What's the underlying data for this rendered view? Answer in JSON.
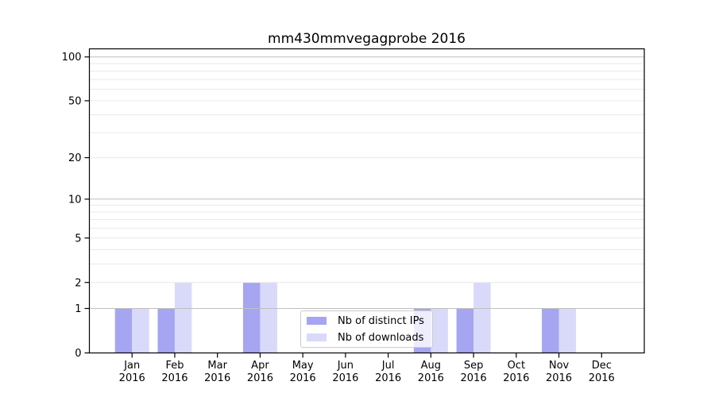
{
  "chart_data": {
    "type": "bar",
    "title": "mm430mmvegagprobe 2016",
    "categories": [
      "Jan",
      "Feb",
      "Mar",
      "Apr",
      "May",
      "Jun",
      "Jul",
      "Aug",
      "Sep",
      "Oct",
      "Nov",
      "Dec"
    ],
    "category_year": "2016",
    "series": [
      {
        "name": "Nb of distinct IPs",
        "color": "#a5a5f2",
        "values": [
          1,
          1,
          0,
          2,
          0,
          0,
          0,
          1,
          1,
          0,
          1,
          0
        ]
      },
      {
        "name": "Nb of downloads",
        "color": "#d9d9fa",
        "values": [
          1,
          2,
          0,
          2,
          0,
          0,
          0,
          1,
          2,
          0,
          1,
          0
        ]
      }
    ],
    "y_axis": {
      "scale": "log1p",
      "tick_values": [
        0,
        1,
        2,
        5,
        10,
        20,
        50,
        100
      ],
      "major_gridlines": [
        1,
        10,
        100
      ],
      "minor_gridlines": [
        2,
        3,
        4,
        5,
        6,
        7,
        8,
        9,
        20,
        30,
        40,
        50,
        60,
        70,
        80,
        90
      ],
      "ylim": [
        0,
        113.6
      ]
    },
    "x_axis": {
      "xlim": [
        -1,
        12
      ]
    },
    "legend": {
      "position": "lower center"
    },
    "grid": true,
    "colors": {
      "grid_major": "#bfbfbf",
      "grid_minor": "#e9e9e9",
      "spine": "#000000",
      "tick_label": "#000000",
      "background": "#ffffff"
    }
  }
}
